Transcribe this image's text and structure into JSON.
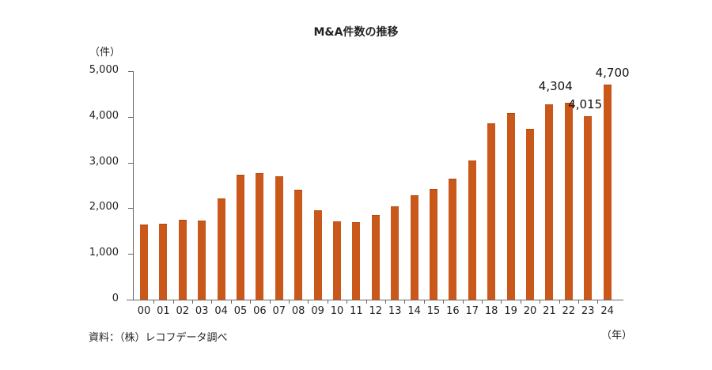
{
  "chart_data": {
    "type": "bar",
    "title": "M&A件数の推移",
    "xlabel": "（年）",
    "ylabel": "（件）",
    "ylim": [
      0,
      5000
    ],
    "yticks": [
      "0",
      "1,000",
      "2,000",
      "3,000",
      "4,000",
      "5,000"
    ],
    "grid": false,
    "categories": [
      "00",
      "01",
      "02",
      "03",
      "04",
      "05",
      "06",
      "07",
      "08",
      "09",
      "10",
      "11",
      "12",
      "13",
      "14",
      "15",
      "16",
      "17",
      "18",
      "19",
      "20",
      "21",
      "22",
      "23",
      "24"
    ],
    "values": [
      1635,
      1653,
      1752,
      1728,
      2211,
      2725,
      2775,
      2696,
      2399,
      1957,
      1707,
      1687,
      1848,
      2048,
      2285,
      2428,
      2652,
      3050,
      3850,
      4088,
      3730,
      4280,
      4304,
      4015,
      4700
    ],
    "bar_color": "#c9581a",
    "annotations": [
      {
        "category": "22",
        "text": "4,304"
      },
      {
        "category": "23",
        "text": "4,015"
      },
      {
        "category": "24",
        "text": "4,700"
      }
    ],
    "source": "資料：（株）レコフデータ調べ"
  }
}
